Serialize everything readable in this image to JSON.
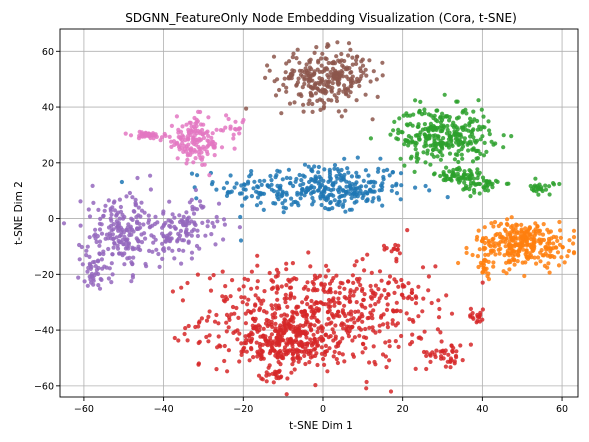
{
  "chart_data": {
    "type": "scatter",
    "title": "SDGNN_FeatureOnly Node Embedding Visualization (Cora, t-SNE)",
    "xlabel": "t-SNE Dim 1",
    "ylabel": "t-SNE Dim 2",
    "xlim": [
      -66,
      64
    ],
    "ylim": [
      -64,
      68
    ],
    "xticks": [
      -60,
      -40,
      -20,
      0,
      20,
      40,
      60
    ],
    "yticks": [
      -60,
      -40,
      -20,
      0,
      20,
      40,
      60
    ],
    "grid": true,
    "legend": "none",
    "series": [
      {
        "color": "#1f77b4",
        "clusters": [
          {
            "cx": -2,
            "cy": 11,
            "sx": 12,
            "sy": 4.5,
            "n": 300
          },
          {
            "cx": 8,
            "cy": 10,
            "sx": 4,
            "sy": 2.5,
            "n": 40
          }
        ]
      },
      {
        "color": "#d62728",
        "clusters": [
          {
            "cx": -2,
            "cy": -35,
            "sx": 14,
            "sy": 9,
            "n": 600
          },
          {
            "cx": -10,
            "cy": -45,
            "sx": 6,
            "sy": 4,
            "n": 200
          },
          {
            "cx": 31,
            "cy": -48,
            "sx": 2.5,
            "sy": 2.5,
            "n": 40
          },
          {
            "cx": 38,
            "cy": -35,
            "sx": 1.5,
            "sy": 1.2,
            "n": 15
          },
          {
            "cx": 18,
            "cy": -11,
            "sx": 1.5,
            "sy": 1.5,
            "n": 12
          },
          {
            "cx": -12,
            "cy": -56,
            "sx": 2.5,
            "sy": 1.2,
            "n": 20
          },
          {
            "cx": 20,
            "cy": -27,
            "sx": 2,
            "sy": 3,
            "n": 20
          }
        ]
      },
      {
        "color": "#8c564b",
        "clusters": [
          {
            "cx": 0,
            "cy": 50,
            "sx": 6,
            "sy": 5,
            "n": 250
          },
          {
            "cx": 8,
            "cy": 55,
            "sx": 3,
            "sy": 2.5,
            "n": 25
          }
        ]
      },
      {
        "color": "#2ca02c",
        "clusters": [
          {
            "cx": 30,
            "cy": 30,
            "sx": 6,
            "sy": 5,
            "n": 300
          },
          {
            "cx": 34,
            "cy": 15,
            "sx": 3,
            "sy": 1.8,
            "n": 60
          },
          {
            "cx": 40,
            "cy": 12,
            "sx": 2.5,
            "sy": 1.5,
            "n": 40
          },
          {
            "cx": 55,
            "cy": 11,
            "sx": 1.5,
            "sy": 1.2,
            "n": 25
          }
        ]
      },
      {
        "color": "#ff7f0e",
        "clusters": [
          {
            "cx": 50,
            "cy": -9,
            "sx": 6,
            "sy": 4,
            "n": 300
          },
          {
            "cx": 40,
            "cy": -18,
            "sx": 1.5,
            "sy": 2,
            "n": 15
          }
        ]
      },
      {
        "color": "#9467bd",
        "clusters": [
          {
            "cx": -50,
            "cy": -5,
            "sx": 5,
            "sy": 7,
            "n": 200
          },
          {
            "cx": -36,
            "cy": -4,
            "sx": 5,
            "sy": 5,
            "n": 120
          },
          {
            "cx": -57,
            "cy": -19,
            "sx": 2,
            "sy": 2.5,
            "n": 40
          }
        ]
      },
      {
        "color": "#e377c2",
        "clusters": [
          {
            "cx": -44,
            "cy": 30,
            "sx": 2,
            "sy": 0.6,
            "n": 40
          },
          {
            "cx": -32,
            "cy": 28,
            "sx": 4,
            "sy": 4,
            "n": 150
          },
          {
            "cx": -21,
            "cy": 33,
            "sx": 1,
            "sy": 1.5,
            "n": 10
          }
        ]
      }
    ]
  }
}
